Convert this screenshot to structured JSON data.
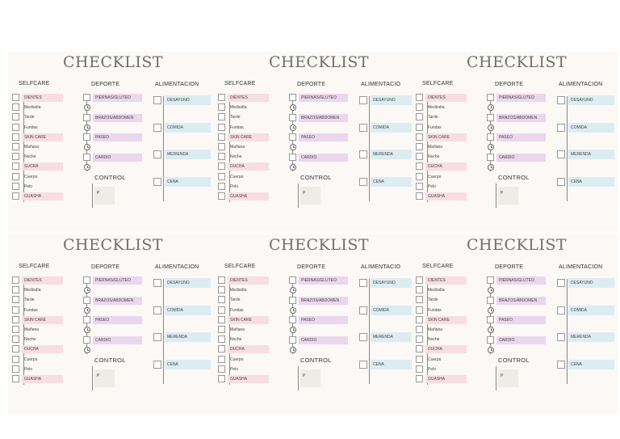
{
  "cards": [
    {
      "title": "CHECKLIST",
      "selfcare_heading": "SELFCARE",
      "deporte_heading": "DEPORTE",
      "alimentacion_heading": "ALIMENTACION",
      "control_heading": "CONTROL",
      "control_field_label": "P",
      "selfcare_items": [
        "DIENTES",
        "Mediodía",
        "Tarde",
        "Fundas",
        "SKIN CARE",
        "Mañana",
        "Noche",
        "SUCRA",
        "Cuerpo",
        "Pelo",
        "GUASHA"
      ],
      "deporte_items": [
        "PIERNAS/GLUTEO",
        "BRAZOS/ABDOMEN",
        "PASEO",
        "CARDIO"
      ],
      "alimentacion_items": [
        "DESAYUNO",
        "COMIDA",
        "MERIENDA",
        "CENA"
      ]
    },
    {
      "title": "CHECKLIST",
      "selfcare_heading": "SELFCARE",
      "deporte_heading": "DEPORTE",
      "alimentacion_heading": "ALIMENTACIO",
      "control_heading": "CONTROL",
      "control_field_label": "P",
      "selfcare_items": [
        "DIENTES",
        "Mediodía",
        "Tarde",
        "Fundas",
        "SKIN CARE",
        "Mañana",
        "Noche",
        "DUCHA",
        "Cuerpo",
        "Pelo",
        "GUASHA"
      ],
      "deporte_items": [
        "PIERNAS/GLUTEO",
        "BRAZOS/ABDOMEN",
        "PASEO",
        "CARDIO"
      ],
      "alimentacion_items": [
        "DESAYUNO",
        "COMIDA",
        "MERENDA",
        "CENA"
      ]
    },
    {
      "title": "CHECKLIST",
      "selfcare_heading": "SELFCARE",
      "deporte_heading": "DEPORTE",
      "alimentacion_heading": "ALIMENTACION",
      "control_heading": "CONTROL",
      "control_field_label": "P",
      "selfcare_items": [
        "DIENTES",
        "Mediodía",
        "Tarde",
        "Fundas",
        "SKIN CARE",
        "Mañana",
        "Noche",
        "DUCHA",
        "Cuerpo",
        "Pelo",
        "GUASHA"
      ],
      "deporte_items": [
        "PIERNAS/GLUTEO",
        "BRAZOS/ABDOMEN",
        "PASEO",
        "CARDIO"
      ],
      "alimentacion_items": [
        "DESAYUNO",
        "COMIDA",
        "MERENDA",
        "CENA"
      ]
    },
    {
      "title": "CHECKLIST",
      "selfcare_heading": "SELFCARE",
      "deporte_heading": "DEPORTE",
      "alimentacion_heading": "ALIMENTACION",
      "control_heading": "CONTROL",
      "control_field_label": "P",
      "selfcare_items": [
        "DIENTES",
        "Mediodía",
        "Tarde",
        "Fundas",
        "SKIN CARE",
        "Mañana",
        "Noche",
        "DUCHA",
        "Cuerpo",
        "Pelo",
        "GUASHA"
      ],
      "deporte_items": [
        "PIERNAS/GLUTEO",
        "BRAZOS/ABDOMEN",
        "PASEO",
        "CARDIO"
      ],
      "alimentacion_items": [
        "DESAYUNO",
        "COMIDA",
        "MERENDA",
        "CENA"
      ]
    },
    {
      "title": "CHECKLIST",
      "selfcare_heading": "SELFCARE",
      "deporte_heading": "DEPORTE",
      "alimentacion_heading": "ALIMENTACIO",
      "control_heading": "CONTROL",
      "control_field_label": "P",
      "selfcare_items": [
        "DIENTES",
        "Mediodía",
        "Tarde",
        "Fundas",
        "SKIN CARE",
        "Mañana",
        "Noche",
        "DUCHA",
        "Cuerpo",
        "Pelo",
        "GUASHA"
      ],
      "deporte_items": [
        "PIERNAS/GLUTEO",
        "BRAZOS/ABDOMEN",
        "PASEO",
        "CARDIO"
      ],
      "alimentacion_items": [
        "DESAYUNO",
        "COMIDA",
        "MERENDA",
        "CENA"
      ]
    },
    {
      "title": "CHECKLIST",
      "selfcare_heading": "SELFCARE",
      "deporte_heading": "DEPORTE",
      "alimentacion_heading": "ALIMENTACION",
      "control_heading": "CONTROL",
      "control_field_label": "P",
      "selfcare_items": [
        "DIENTES",
        "Mediodía",
        "Tarde",
        "Fundas",
        "SKIN CARE",
        "Mañana",
        "Noche",
        "DUCHA",
        "Cuerpo",
        "Pelo",
        "GUASHA"
      ],
      "deporte_items": [
        "PIERNAS/GLUTEO",
        "BRAZOS/ABDOMEN",
        "PASEO",
        "CARDIO"
      ],
      "alimentacion_items": [
        "DESAYUNO",
        "COMIDA",
        "MERENDA",
        "CENA"
      ]
    }
  ],
  "colors": {
    "pink": "#f8dde4",
    "lavender": "#ead7ee",
    "light_blue": "#dcedf1",
    "card_background": "#fbf8f5"
  }
}
